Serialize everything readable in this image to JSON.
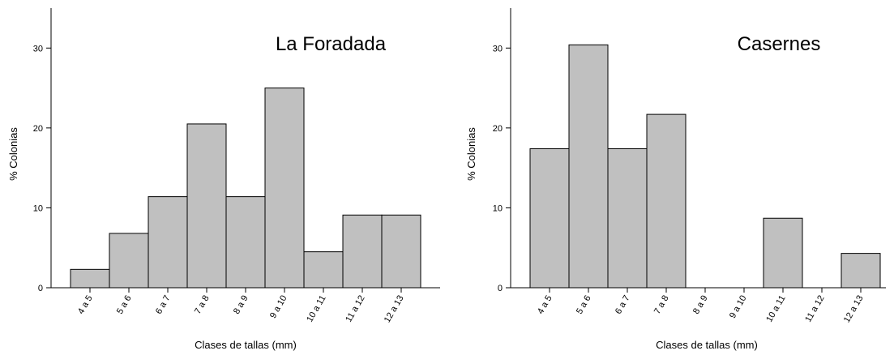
{
  "chart_data": [
    {
      "type": "bar",
      "title": "La Foradada",
      "xlabel": "Clases de tallas (mm)",
      "ylabel": "% Colonias",
      "ylim": [
        0,
        35
      ],
      "yticks": [
        0,
        10,
        20,
        30
      ],
      "grid": false,
      "categories": [
        "4 a 5",
        "5 a 6",
        "6 a 7",
        "7 a 8",
        "8 a 9",
        "9 a 10",
        "10 a 11",
        "11 a 12",
        "12 a 13"
      ],
      "values": [
        2.3,
        6.8,
        11.4,
        20.5,
        11.4,
        25.0,
        4.5,
        9.1,
        9.1
      ],
      "bar_color": "#c0c0c0"
    },
    {
      "type": "bar",
      "title": "Casernes",
      "xlabel": "Clases de tallas (mm)",
      "ylabel": "% Colonias",
      "ylim": [
        0,
        35
      ],
      "yticks": [
        0,
        10,
        20,
        30
      ],
      "grid": false,
      "categories": [
        "4 a 5",
        "5 a 6",
        "6 a 7",
        "7 a 8",
        "8 a 9",
        "9 a 10",
        "10 a 11",
        "11 a 12",
        "12 a 13"
      ],
      "values": [
        17.4,
        30.4,
        17.4,
        21.7,
        0,
        0,
        8.7,
        0,
        4.3
      ],
      "bar_color": "#c0c0c0"
    }
  ]
}
